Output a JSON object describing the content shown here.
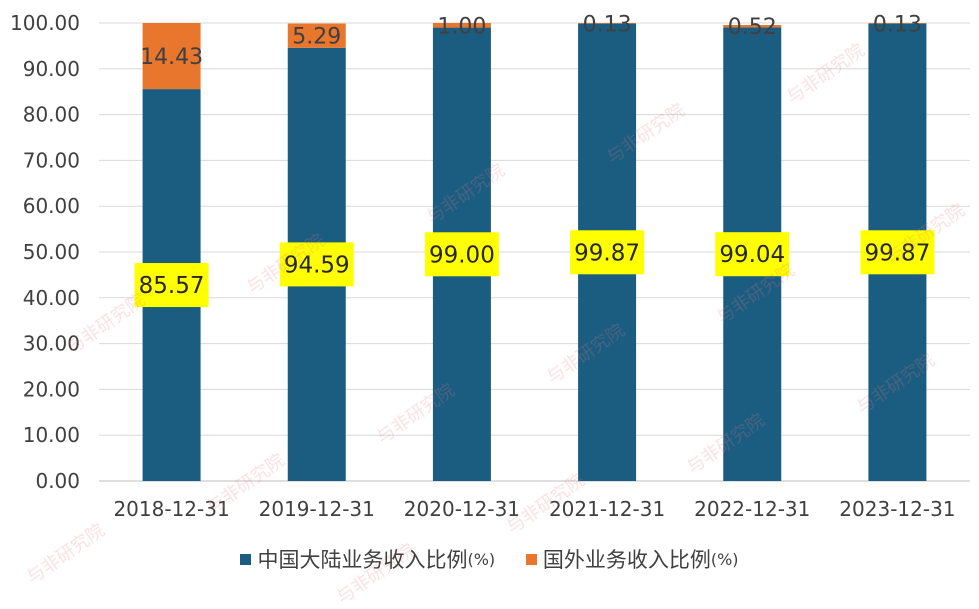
{
  "colors": {
    "mainland": "#1b5d80",
    "overseas": "#e8762d",
    "label_bg": "#ffff00",
    "grid": "#d9d9d9",
    "axis": "#bfbfbf"
  },
  "watermark_text": "与非研究院",
  "legend": {
    "mainland_label": "中国大陆业务收入比例",
    "overseas_label": "国外业务收入比例",
    "unit": "(%)"
  },
  "chart_data": {
    "type": "bar",
    "stacked": true,
    "categories": [
      "2018-12-31",
      "2019-12-31",
      "2020-12-31",
      "2021-12-31",
      "2022-12-31",
      "2023-12-31"
    ],
    "series": [
      {
        "name": "中国大陆业务收入比例(%)",
        "values": [
          85.57,
          94.59,
          99.0,
          99.87,
          99.04,
          99.87
        ],
        "labels": [
          "85.57",
          "94.59",
          "99.00",
          "99.87",
          "99.04",
          "99.87"
        ]
      },
      {
        "name": "国外业务收入比例(%)",
        "values": [
          14.43,
          5.29,
          1.0,
          0.13,
          0.52,
          0.13
        ],
        "labels": [
          "14.43",
          "5.29",
          "1.00",
          "0.13",
          "0.52",
          "0.13"
        ]
      }
    ],
    "yticks": [
      "0.00",
      "10.00",
      "20.00",
      "30.00",
      "40.00",
      "50.00",
      "60.00",
      "70.00",
      "80.00",
      "90.00",
      "100.00"
    ],
    "ylim": [
      0,
      100
    ],
    "grid": true,
    "legend_position": "bottom",
    "title": "",
    "xlabel": "",
    "ylabel": ""
  }
}
